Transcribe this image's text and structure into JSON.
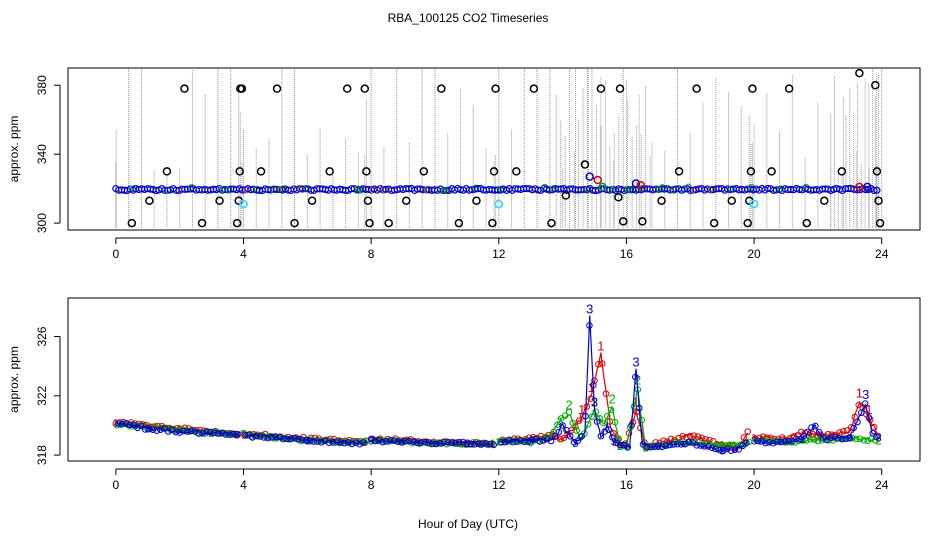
{
  "figure": {
    "title": "RBA_100125  CO2 Timeseries",
    "xlabel": "Hour of Day (UTC)"
  },
  "chart_data": [
    {
      "type": "scatter",
      "panel": "top",
      "title": "RBA_100125  CO2 Timeseries",
      "xlabel": "",
      "ylabel": "approx. ppm",
      "xlim": [
        -1.5,
        25.2
      ],
      "ylim": [
        296,
        390
      ],
      "xticks": [
        0,
        4,
        8,
        12,
        16,
        20,
        24
      ],
      "yticks": [
        300,
        340,
        380
      ],
      "grid": false,
      "colors": {
        "baseline": "#0000cc",
        "flags": "#000000",
        "cyan": "#33ddff",
        "red": "#dd0000",
        "green": "#00aa00",
        "spikes": "#999999"
      },
      "baseline_level": 319.5,
      "flagged_points": [
        {
          "x": 0.5,
          "y": 300
        },
        {
          "x": 1.05,
          "y": 313
        },
        {
          "x": 1.6,
          "y": 330
        },
        {
          "x": 2.15,
          "y": 378
        },
        {
          "x": 2.7,
          "y": 300
        },
        {
          "x": 3.25,
          "y": 313
        },
        {
          "x": 3.8,
          "y": 300
        },
        {
          "x": 3.85,
          "y": 313
        },
        {
          "x": 3.88,
          "y": 330
        },
        {
          "x": 3.9,
          "y": 378
        },
        {
          "x": 3.95,
          "y": 378
        },
        {
          "x": 4.55,
          "y": 330
        },
        {
          "x": 5.05,
          "y": 378
        },
        {
          "x": 5.6,
          "y": 300
        },
        {
          "x": 6.15,
          "y": 313
        },
        {
          "x": 6.7,
          "y": 330
        },
        {
          "x": 7.25,
          "y": 378
        },
        {
          "x": 7.8,
          "y": 378
        },
        {
          "x": 7.85,
          "y": 330
        },
        {
          "x": 7.9,
          "y": 313
        },
        {
          "x": 7.95,
          "y": 300
        },
        {
          "x": 8.55,
          "y": 300
        },
        {
          "x": 9.1,
          "y": 313
        },
        {
          "x": 9.65,
          "y": 330
        },
        {
          "x": 10.2,
          "y": 378
        },
        {
          "x": 10.75,
          "y": 300
        },
        {
          "x": 11.3,
          "y": 313
        },
        {
          "x": 11.8,
          "y": 300
        },
        {
          "x": 11.85,
          "y": 330
        },
        {
          "x": 11.9,
          "y": 378
        },
        {
          "x": 12.55,
          "y": 330
        },
        {
          "x": 13.1,
          "y": 378
        },
        {
          "x": 13.65,
          "y": 300
        },
        {
          "x": 14.1,
          "y": 316
        },
        {
          "x": 14.7,
          "y": 334
        },
        {
          "x": 15.2,
          "y": 378
        },
        {
          "x": 15.75,
          "y": 315
        },
        {
          "x": 15.8,
          "y": 378
        },
        {
          "x": 15.9,
          "y": 301
        },
        {
          "x": 16.5,
          "y": 301
        },
        {
          "x": 17.1,
          "y": 313
        },
        {
          "x": 17.65,
          "y": 330
        },
        {
          "x": 18.2,
          "y": 378
        },
        {
          "x": 18.75,
          "y": 300
        },
        {
          "x": 19.3,
          "y": 313
        },
        {
          "x": 19.8,
          "y": 300
        },
        {
          "x": 19.85,
          "y": 313
        },
        {
          "x": 19.9,
          "y": 330
        },
        {
          "x": 19.95,
          "y": 378
        },
        {
          "x": 20.55,
          "y": 330
        },
        {
          "x": 21.1,
          "y": 378
        },
        {
          "x": 21.65,
          "y": 300
        },
        {
          "x": 22.2,
          "y": 313
        },
        {
          "x": 22.75,
          "y": 330
        },
        {
          "x": 23.3,
          "y": 387
        },
        {
          "x": 23.8,
          "y": 380
        },
        {
          "x": 23.85,
          "y": 330
        },
        {
          "x": 23.9,
          "y": 313
        },
        {
          "x": 23.95,
          "y": 300
        }
      ],
      "cyan_points": [
        {
          "x": 4.0,
          "y": 311
        },
        {
          "x": 12.0,
          "y": 311
        },
        {
          "x": 20.0,
          "y": 311
        }
      ],
      "colored_points": [
        {
          "x": 14.85,
          "y": 327,
          "color": "#0000cc"
        },
        {
          "x": 15.1,
          "y": 325,
          "color": "#dd0000"
        },
        {
          "x": 15.25,
          "y": 321,
          "color": "#00aa00"
        },
        {
          "x": 16.3,
          "y": 323,
          "color": "#0000cc"
        },
        {
          "x": 16.45,
          "y": 322,
          "color": "#dd0000"
        },
        {
          "x": 23.3,
          "y": 321,
          "color": "#dd0000"
        },
        {
          "x": 23.55,
          "y": 321,
          "color": "#0000cc"
        }
      ]
    },
    {
      "type": "line",
      "panel": "bottom",
      "xlabel": "Hour of Day (UTC)",
      "ylabel": "approx. ppm",
      "xlim": [
        -1.5,
        25.2
      ],
      "ylim": [
        317.6,
        328.6
      ],
      "xticks": [
        0,
        4,
        8,
        12,
        16,
        20,
        24
      ],
      "yticks": [
        318,
        322,
        326
      ],
      "grid": false,
      "series": [
        {
          "name": "1",
          "color": "#dd0000",
          "x": [
            0.0,
            0.5,
            1.0,
            2.0,
            3.0,
            3.8,
            4.0,
            5.0,
            6.0,
            7.0,
            7.8,
            8.0,
            9.0,
            10.0,
            11.0,
            11.8,
            12.0,
            13.0,
            13.7,
            14.0,
            14.6,
            14.9,
            15.2,
            15.5,
            15.8,
            16.0,
            16.3,
            16.6,
            17.0,
            18.0,
            19.0,
            19.5,
            19.8,
            20.0,
            21.0,
            21.5,
            22.0,
            22.5,
            23.0,
            23.3,
            23.6,
            23.9
          ],
          "y": [
            320.2,
            320.1,
            320.0,
            319.8,
            319.6,
            319.5,
            319.4,
            319.3,
            319.1,
            319.0,
            318.9,
            319.1,
            319.0,
            318.9,
            318.8,
            318.8,
            319.0,
            319.1,
            319.3,
            319.0,
            320.5,
            322.0,
            324.8,
            320.0,
            318.7,
            318.8,
            321.0,
            318.6,
            318.8,
            319.3,
            318.7,
            318.5,
            319.6,
            319.2,
            319.1,
            319.5,
            319.3,
            319.4,
            319.6,
            321.6,
            320.5,
            319.3
          ]
        },
        {
          "name": "2",
          "color": "#00aa00",
          "x": [
            0.0,
            0.5,
            1.0,
            2.0,
            3.0,
            3.8,
            4.0,
            5.0,
            6.0,
            7.0,
            7.8,
            8.0,
            9.0,
            10.0,
            11.0,
            11.8,
            12.0,
            13.0,
            13.6,
            13.9,
            14.2,
            14.6,
            15.0,
            15.3,
            15.55,
            15.8,
            16.0,
            16.35,
            16.6,
            17.0,
            18.0,
            19.0,
            19.8,
            20.0,
            21.0,
            22.0,
            23.0,
            23.9
          ],
          "y": [
            320.1,
            320.0,
            319.9,
            319.7,
            319.5,
            319.4,
            319.4,
            319.2,
            319.0,
            318.9,
            318.9,
            319.0,
            318.9,
            318.8,
            318.8,
            318.7,
            318.9,
            318.9,
            319.2,
            320.3,
            320.8,
            319.0,
            321.0,
            320.1,
            321.2,
            318.6,
            318.5,
            322.5,
            318.5,
            318.7,
            318.9,
            318.6,
            318.8,
            319.0,
            318.9,
            319.0,
            319.1,
            319.0
          ]
        },
        {
          "name": "3",
          "color": "#0000cc",
          "x": [
            0.0,
            0.5,
            1.0,
            2.0,
            3.0,
            3.8,
            4.0,
            5.0,
            6.0,
            7.0,
            7.8,
            8.0,
            9.0,
            10.0,
            11.0,
            11.8,
            12.0,
            13.0,
            13.7,
            14.0,
            14.4,
            14.7,
            14.85,
            15.0,
            15.2,
            15.4,
            15.6,
            15.9,
            16.1,
            16.3,
            16.5,
            16.8,
            17.0,
            18.0,
            18.5,
            19.0,
            19.5,
            19.8,
            20.0,
            20.5,
            21.0,
            21.5,
            21.9,
            22.2,
            23.0,
            23.5,
            23.7,
            23.9
          ],
          "y": [
            320.2,
            320.0,
            319.8,
            319.6,
            319.5,
            319.4,
            319.3,
            319.2,
            319.0,
            318.9,
            318.8,
            319.0,
            318.9,
            318.8,
            318.8,
            318.7,
            318.9,
            319.0,
            319.0,
            320.0,
            318.8,
            319.5,
            327.3,
            321.0,
            319.2,
            320.0,
            318.9,
            318.6,
            318.5,
            323.7,
            318.7,
            318.5,
            318.6,
            318.8,
            318.6,
            318.3,
            318.4,
            318.9,
            319.0,
            318.8,
            318.9,
            319.1,
            320.0,
            319.1,
            319.2,
            321.5,
            319.5,
            319.2
          ]
        }
      ]
    }
  ]
}
